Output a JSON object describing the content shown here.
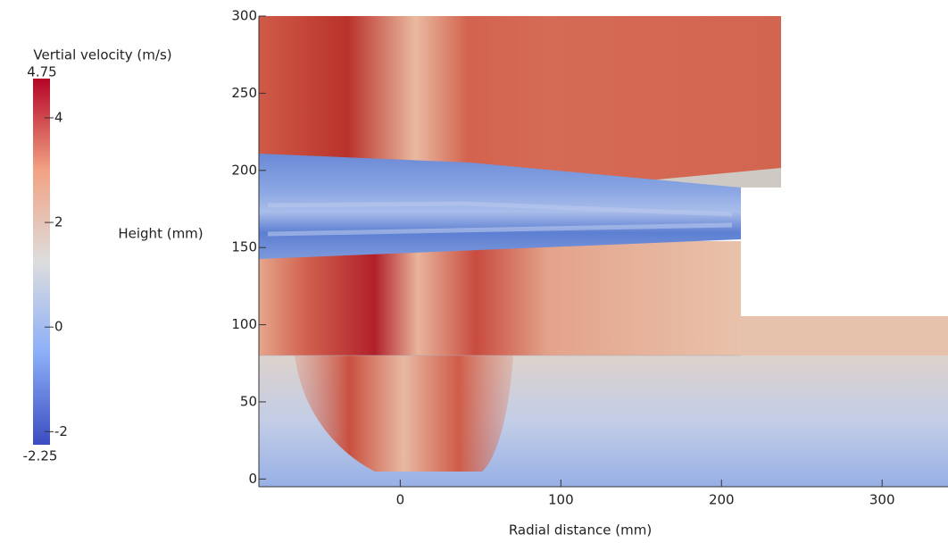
{
  "chart_data": {
    "type": "heatmap",
    "xlabel": "Radial distance (mm)",
    "ylabel": "Height (mm)",
    "xlim": [
      -88,
      341
    ],
    "ylim": [
      -5,
      300
    ],
    "xticks": [
      0,
      100,
      200,
      300
    ],
    "yticks": [
      0,
      50,
      100,
      150,
      200,
      250,
      300
    ],
    "colorbar": {
      "title": "Vertial velocity (m/s)",
      "range": [
        -2.25,
        4.75
      ],
      "ticks": [
        -2,
        0,
        2,
        4
      ],
      "colormap": [
        "#3b4cc0",
        "#8caff8",
        "#dddddd",
        "#f2a283",
        "#b40426"
      ]
    }
  }
}
